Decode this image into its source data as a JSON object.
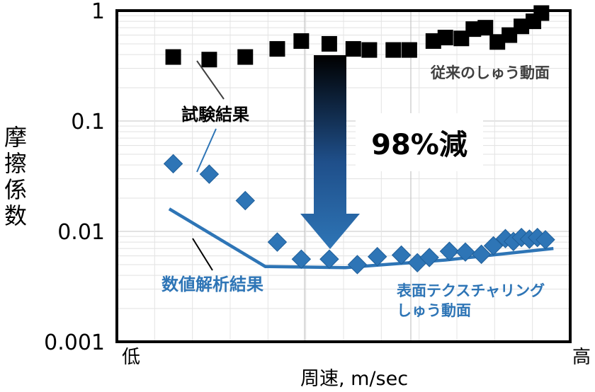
{
  "chart_data": {
    "type": "scatter",
    "title": "",
    "xlabel": "周速, m/sec",
    "ylabel": "摩擦係数",
    "x_scale": "categorical-low-to-high",
    "x_end_labels": {
      "low": "低",
      "high": "高"
    },
    "y_scale": "log",
    "ylim": [
      0.001,
      1
    ],
    "y_ticks": [
      {
        "value": 1,
        "label": "1"
      },
      {
        "value": 0.1,
        "label": "0.1"
      },
      {
        "value": 0.01,
        "label": "0.01"
      },
      {
        "value": 0.001,
        "label": "0.001"
      }
    ],
    "grid": true,
    "series": [
      {
        "name": "従来のしゅう動面",
        "kind": "measured",
        "marker": "square",
        "color": "#000000",
        "points": [
          {
            "x": 0.07,
            "y": 0.38
          },
          {
            "x": 0.16,
            "y": 0.36
          },
          {
            "x": 0.25,
            "y": 0.38
          },
          {
            "x": 0.33,
            "y": 0.45
          },
          {
            "x": 0.39,
            "y": 0.53
          },
          {
            "x": 0.46,
            "y": 0.5
          },
          {
            "x": 0.52,
            "y": 0.45
          },
          {
            "x": 0.56,
            "y": 0.44
          },
          {
            "x": 0.62,
            "y": 0.44
          },
          {
            "x": 0.66,
            "y": 0.44
          },
          {
            "x": 0.72,
            "y": 0.53
          },
          {
            "x": 0.75,
            "y": 0.57
          },
          {
            "x": 0.79,
            "y": 0.56
          },
          {
            "x": 0.82,
            "y": 0.68
          },
          {
            "x": 0.85,
            "y": 0.7
          },
          {
            "x": 0.88,
            "y": 0.52
          },
          {
            "x": 0.91,
            "y": 0.6
          },
          {
            "x": 0.94,
            "y": 0.72
          },
          {
            "x": 0.97,
            "y": 0.8
          },
          {
            "x": 0.99,
            "y": 0.95
          }
        ]
      },
      {
        "name": "表面テクスチャリングしゅう動面",
        "kind": "measured",
        "marker": "diamond",
        "color": "#2E75B6",
        "points": [
          {
            "x": 0.07,
            "y": 0.041
          },
          {
            "x": 0.16,
            "y": 0.033
          },
          {
            "x": 0.25,
            "y": 0.019
          },
          {
            "x": 0.33,
            "y": 0.008
          },
          {
            "x": 0.39,
            "y": 0.0056
          },
          {
            "x": 0.46,
            "y": 0.0056
          },
          {
            "x": 0.53,
            "y": 0.005
          },
          {
            "x": 0.58,
            "y": 0.0059
          },
          {
            "x": 0.64,
            "y": 0.0061
          },
          {
            "x": 0.68,
            "y": 0.0052
          },
          {
            "x": 0.71,
            "y": 0.0058
          },
          {
            "x": 0.76,
            "y": 0.0066
          },
          {
            "x": 0.8,
            "y": 0.0065
          },
          {
            "x": 0.84,
            "y": 0.0062
          },
          {
            "x": 0.87,
            "y": 0.0074
          },
          {
            "x": 0.9,
            "y": 0.0086
          },
          {
            "x": 0.92,
            "y": 0.0081
          },
          {
            "x": 0.94,
            "y": 0.0088
          },
          {
            "x": 0.96,
            "y": 0.0085
          },
          {
            "x": 0.98,
            "y": 0.0088
          },
          {
            "x": 1.0,
            "y": 0.0084
          }
        ]
      },
      {
        "name": "数値解析結果",
        "kind": "line",
        "color": "#2E75B6",
        "points": [
          {
            "x": 0.06,
            "y": 0.016
          },
          {
            "x": 0.3,
            "y": 0.0048
          },
          {
            "x": 0.5,
            "y": 0.0047
          },
          {
            "x": 0.75,
            "y": 0.0055
          },
          {
            "x": 1.02,
            "y": 0.007
          }
        ]
      }
    ],
    "annotations": [
      {
        "text": "試験結果",
        "color": "#000000"
      },
      {
        "text": "数値解析結果",
        "color": "#2E75B6"
      },
      {
        "text": "従来のしゅう動面",
        "color": "#404040"
      },
      {
        "text": "表面テクスチャリング",
        "color": "#2E75B6"
      },
      {
        "text": "しゅう動面",
        "color": "#2E75B6"
      },
      {
        "text": "98%減",
        "color": "#000000"
      }
    ]
  }
}
